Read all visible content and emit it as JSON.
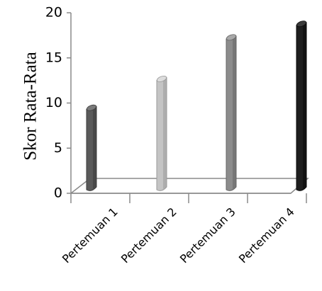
{
  "chart_data": {
    "type": "bar",
    "categories": [
      "Pertemuan 1",
      "Pertemuan 2",
      "Pertemuan 3",
      "Pertemuan 4"
    ],
    "values": [
      9,
      12.2,
      16.8,
      18.3
    ],
    "title": "",
    "xlabel": "",
    "ylabel": "Skor Rata-Rata",
    "ylim": [
      0,
      20
    ],
    "yticks": [
      0,
      5,
      10,
      15,
      20
    ],
    "grid": false,
    "legend": "none",
    "bar_colors": [
      "#5a5a5a",
      "#c4c4c4",
      "#8c8c8c",
      "#1e1e1e"
    ],
    "bar_shadow_colors": [
      "#3c3c3c",
      "#9a9a9a",
      "#666666",
      "#0a0a0a"
    ],
    "bar_top_colors": [
      "#7a7a7a",
      "#dcdcdc",
      "#a8a8a8",
      "#3a3a3a"
    ]
  }
}
